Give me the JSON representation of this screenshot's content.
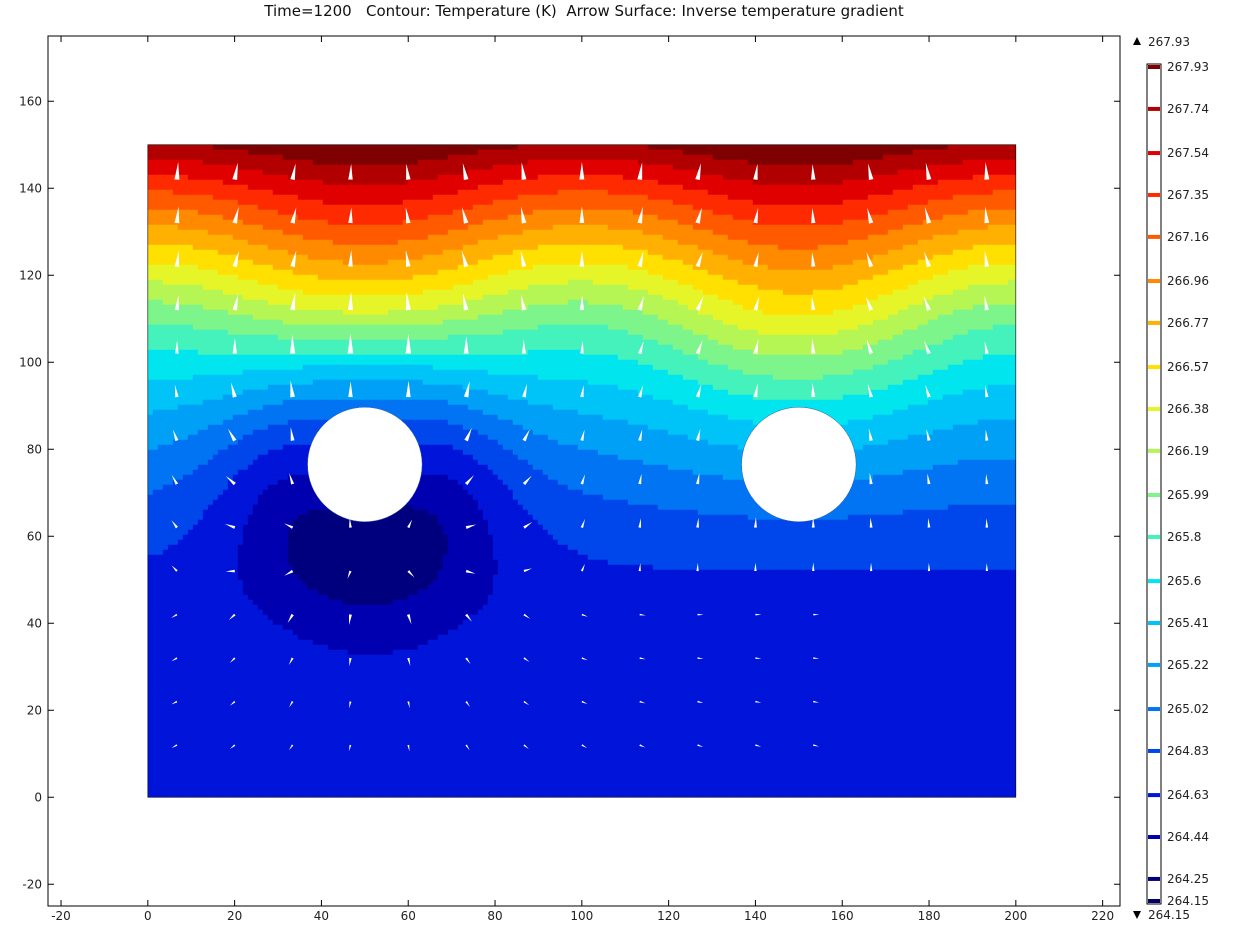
{
  "title": "Time=1200   Contour: Temperature (K)  Arrow Surface: Inverse temperature gradient",
  "chart_data": {
    "type": "heatmap",
    "plot_kind": "filled contour with arrow surface",
    "xlim": [
      -23,
      224
    ],
    "ylim": [
      -25,
      175
    ],
    "x_ticks": [
      "-20",
      "0",
      "20",
      "40",
      "60",
      "80",
      "100",
      "120",
      "140",
      "160",
      "180",
      "200",
      "220"
    ],
    "y_ticks": [
      "-20",
      "0",
      "20",
      "40",
      "60",
      "80",
      "100",
      "120",
      "140",
      "160"
    ],
    "domain": {
      "x": [
        0,
        200
      ],
      "y": [
        0,
        150
      ]
    },
    "holes": [
      {
        "cx": 50,
        "cy": 76.5,
        "r": 13.2
      },
      {
        "cx": 150,
        "cy": 76.5,
        "r": 13.2
      }
    ],
    "colorbar": {
      "max_label": "267.93",
      "min_label": "264.15",
      "max": 267.93,
      "min": 264.15,
      "levels": [
        "267.93",
        "267.74",
        "267.54",
        "267.35",
        "267.16",
        "266.96",
        "266.77",
        "266.57",
        "266.38",
        "266.19",
        "265.99",
        "265.8",
        "265.6",
        "265.41",
        "265.22",
        "265.02",
        "264.83",
        "264.63",
        "264.44",
        "264.25",
        "264.15"
      ],
      "colors": [
        "#7f0000",
        "#b20000",
        "#e00000",
        "#ff2b00",
        "#ff5a00",
        "#ff8a00",
        "#ffb000",
        "#ffe000",
        "#e6f528",
        "#b5f554",
        "#7df58a",
        "#45f2bc",
        "#00e5ee",
        "#00c3f7",
        "#00a0f7",
        "#0074f2",
        "#0047eb",
        "#0015d9",
        "#0000b0",
        "#00007f",
        "#000066"
      ]
    },
    "arrow_color": "#ffffff"
  }
}
